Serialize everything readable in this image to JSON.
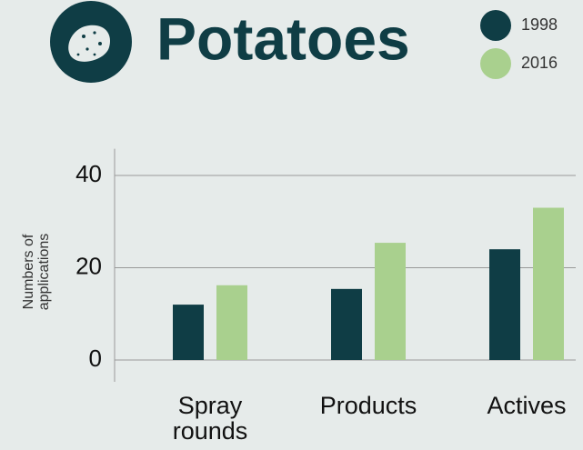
{
  "chart_data": {
    "type": "bar",
    "title": "Potatoes",
    "y_label": "Numbers of applications",
    "categories": [
      "Spray rounds",
      "Products",
      "Actives"
    ],
    "series": [
      {
        "name": "1998",
        "color": "#0f3d45",
        "values": [
          12,
          15.4,
          24
        ]
      },
      {
        "name": "2016",
        "color": "#a9d08e",
        "values": [
          16.2,
          25.4,
          33
        ]
      }
    ],
    "ylim": [
      0,
      45
    ],
    "yticks": [
      0,
      20,
      40
    ],
    "grid": true
  }
}
